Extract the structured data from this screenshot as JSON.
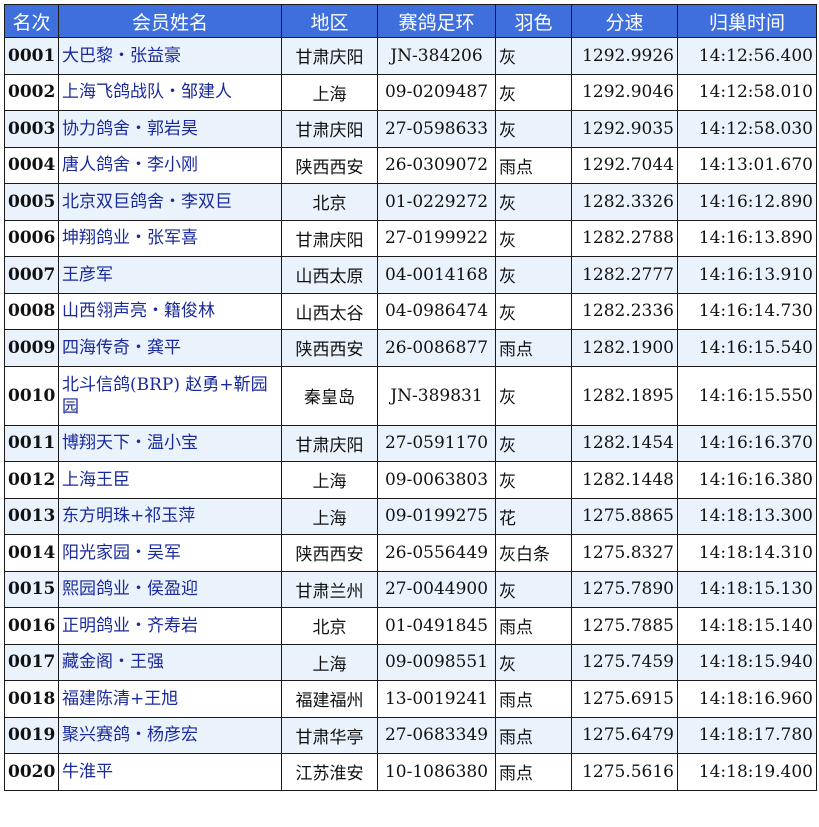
{
  "header": {
    "rank": "名次",
    "name": "会员姓名",
    "region": "地区",
    "ring": "赛鸽足环",
    "color": "羽色",
    "speed": "分速",
    "time": "归巢时间"
  },
  "colors": {
    "header_bg": "#3e6fdc",
    "row_alt": "#eaf2fc",
    "name_text": "#1a2a9c"
  },
  "rows": [
    {
      "rank": "0001",
      "name": "大巴黎・张益豪",
      "region": "甘肃庆阳",
      "ring": "JN-384206",
      "color": "灰",
      "speed": "1292.9926",
      "time": "14:12:56.400"
    },
    {
      "rank": "0002",
      "name": "上海飞鸽战队・邹建人",
      "region": "上海",
      "ring": "09-0209487",
      "color": "灰",
      "speed": "1292.9046",
      "time": "14:12:58.010"
    },
    {
      "rank": "0003",
      "name": "协力鸽舍・郭岩昊",
      "region": "甘肃庆阳",
      "ring": "27-0598633",
      "color": "灰",
      "speed": "1292.9035",
      "time": "14:12:58.030"
    },
    {
      "rank": "0004",
      "name": "唐人鸽舍・李小刚",
      "region": "陕西西安",
      "ring": "26-0309072",
      "color": "雨点",
      "speed": "1292.7044",
      "time": "14:13:01.670"
    },
    {
      "rank": "0005",
      "name": "北京双巨鸽舍・李双巨",
      "region": "北京",
      "ring": "01-0229272",
      "color": "灰",
      "speed": "1282.3326",
      "time": "14:16:12.890"
    },
    {
      "rank": "0006",
      "name": "坤翔鸽业・张军喜",
      "region": "甘肃庆阳",
      "ring": "27-0199922",
      "color": "灰",
      "speed": "1282.2788",
      "time": "14:16:13.890"
    },
    {
      "rank": "0007",
      "name": "王彦军",
      "region": "山西太原",
      "ring": "04-0014168",
      "color": "灰",
      "speed": "1282.2777",
      "time": "14:16:13.910"
    },
    {
      "rank": "0008",
      "name": "山西翎声亮・籍俊林",
      "region": "山西太谷",
      "ring": "04-0986474",
      "color": "灰",
      "speed": "1282.2336",
      "time": "14:16:14.730"
    },
    {
      "rank": "0009",
      "name": "四海传奇・龚平",
      "region": "陕西西安",
      "ring": "26-0086877",
      "color": "雨点",
      "speed": "1282.1900",
      "time": "14:16:15.540"
    },
    {
      "rank": "0010",
      "name": "北斗信鸽(BRP) 赵勇+靳园园",
      "region": "秦皇岛",
      "ring": "JN-389831",
      "color": "灰",
      "speed": "1282.1895",
      "time": "14:16:15.550"
    },
    {
      "rank": "0011",
      "name": "博翔天下・温小宝",
      "region": "甘肃庆阳",
      "ring": "27-0591170",
      "color": "灰",
      "speed": "1282.1454",
      "time": "14:16:16.370"
    },
    {
      "rank": "0012",
      "name": "上海王臣",
      "region": "上海",
      "ring": "09-0063803",
      "color": "灰",
      "speed": "1282.1448",
      "time": "14:16:16.380"
    },
    {
      "rank": "0013",
      "name": "东方明珠+祁玉萍",
      "region": "上海",
      "ring": "09-0199275",
      "color": "花",
      "speed": "1275.8865",
      "time": "14:18:13.300"
    },
    {
      "rank": "0014",
      "name": "阳光家园・吴军",
      "region": "陕西西安",
      "ring": "26-0556449",
      "color": "灰白条",
      "speed": "1275.8327",
      "time": "14:18:14.310"
    },
    {
      "rank": "0015",
      "name": "熙园鸽业・侯盈迎",
      "region": "甘肃兰州",
      "ring": "27-0044900",
      "color": "灰",
      "speed": "1275.7890",
      "time": "14:18:15.130"
    },
    {
      "rank": "0016",
      "name": "正明鸽业・齐寿岩",
      "region": "北京",
      "ring": "01-0491845",
      "color": "雨点",
      "speed": "1275.7885",
      "time": "14:18:15.140"
    },
    {
      "rank": "0017",
      "name": "藏金阁・王强",
      "region": "上海",
      "ring": "09-0098551",
      "color": "灰",
      "speed": "1275.7459",
      "time": "14:18:15.940"
    },
    {
      "rank": "0018",
      "name": "福建陈清+王旭",
      "region": "福建福州",
      "ring": "13-0019241",
      "color": "雨点",
      "speed": "1275.6915",
      "time": "14:18:16.960"
    },
    {
      "rank": "0019",
      "name": "聚兴赛鸽・杨彦宏",
      "region": "甘肃华亭",
      "ring": "27-0683349",
      "color": "雨点",
      "speed": "1275.6479",
      "time": "14:18:17.780"
    },
    {
      "rank": "0020",
      "name": "牛淮平",
      "region": "江苏淮安",
      "ring": "10-1086380",
      "color": "雨点",
      "speed": "1275.5616",
      "time": "14:18:19.400"
    }
  ]
}
